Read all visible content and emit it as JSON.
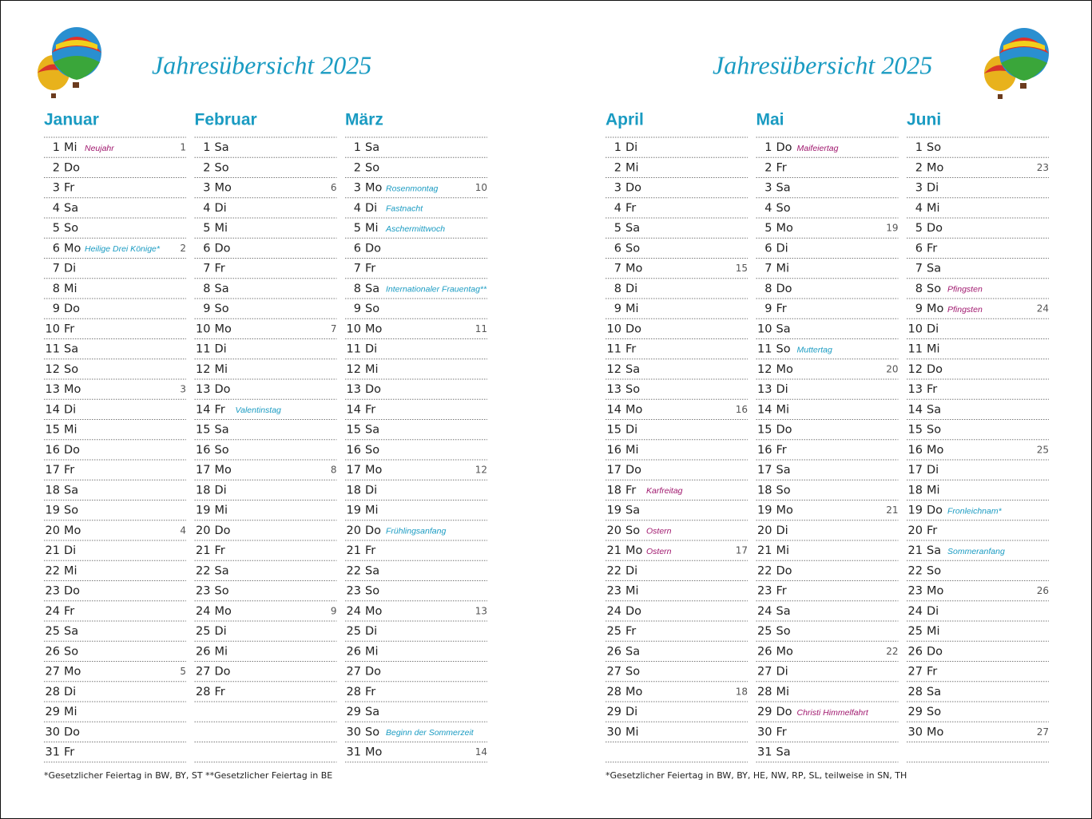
{
  "pages": [
    {
      "title": "Jahresübersicht 2025",
      "footnote": "*Gesetzlicher Feiertag in BW, BY, ST   **Gesetzlicher Feiertag in BE",
      "months": [
        {
          "name": "Januar",
          "days": [
            {
              "day": 1,
              "wd": "Mi",
              "color": "#a0186e",
              "note": "Neujahr",
              "note_color": "#a0186e",
              "week": 1
            },
            {
              "day": 2,
              "wd": "Do"
            },
            {
              "day": 3,
              "wd": "Fr"
            },
            {
              "day": 4,
              "wd": "Sa"
            },
            {
              "day": 5,
              "wd": "So",
              "color": "#1a9bc2"
            },
            {
              "day": 6,
              "wd": "Mo",
              "note": "Heilige Drei Könige*",
              "note_color": "#1a9bc2",
              "week": 2
            },
            {
              "day": 7,
              "wd": "Di"
            },
            {
              "day": 8,
              "wd": "Mi"
            },
            {
              "day": 9,
              "wd": "Do"
            },
            {
              "day": 10,
              "wd": "Fr"
            },
            {
              "day": 11,
              "wd": "Sa"
            },
            {
              "day": 12,
              "wd": "So",
              "color": "#1a9bc2"
            },
            {
              "day": 13,
              "wd": "Mo",
              "week": 3
            },
            {
              "day": 14,
              "wd": "Di"
            },
            {
              "day": 15,
              "wd": "Mi"
            },
            {
              "day": 16,
              "wd": "Do"
            },
            {
              "day": 17,
              "wd": "Fr"
            },
            {
              "day": 18,
              "wd": "Sa"
            },
            {
              "day": 19,
              "wd": "So",
              "color": "#1a9bc2"
            },
            {
              "day": 20,
              "wd": "Mo",
              "week": 4
            },
            {
              "day": 21,
              "wd": "Di"
            },
            {
              "day": 22,
              "wd": "Mi"
            },
            {
              "day": 23,
              "wd": "Do"
            },
            {
              "day": 24,
              "wd": "Fr"
            },
            {
              "day": 25,
              "wd": "Sa"
            },
            {
              "day": 26,
              "wd": "So",
              "color": "#1a9bc2"
            },
            {
              "day": 27,
              "wd": "Mo",
              "week": 5
            },
            {
              "day": 28,
              "wd": "Di"
            },
            {
              "day": 29,
              "wd": "Mi"
            },
            {
              "day": 30,
              "wd": "Do"
            },
            {
              "day": 31,
              "wd": "Fr"
            }
          ]
        },
        {
          "name": "Februar",
          "days": [
            {
              "day": 1,
              "wd": "Sa"
            },
            {
              "day": 2,
              "wd": "So",
              "color": "#1a9bc2"
            },
            {
              "day": 3,
              "wd": "Mo",
              "week": 6
            },
            {
              "day": 4,
              "wd": "Di"
            },
            {
              "day": 5,
              "wd": "Mi"
            },
            {
              "day": 6,
              "wd": "Do"
            },
            {
              "day": 7,
              "wd": "Fr"
            },
            {
              "day": 8,
              "wd": "Sa"
            },
            {
              "day": 9,
              "wd": "So",
              "color": "#1a9bc2"
            },
            {
              "day": 10,
              "wd": "Mo",
              "week": 7
            },
            {
              "day": 11,
              "wd": "Di"
            },
            {
              "day": 12,
              "wd": "Mi"
            },
            {
              "day": 13,
              "wd": "Do"
            },
            {
              "day": 14,
              "wd": "Fr",
              "note": "Valentinstag",
              "note_color": "#1a9bc2"
            },
            {
              "day": 15,
              "wd": "Sa"
            },
            {
              "day": 16,
              "wd": "So",
              "color": "#1a9bc2"
            },
            {
              "day": 17,
              "wd": "Mo",
              "week": 8
            },
            {
              "day": 18,
              "wd": "Di"
            },
            {
              "day": 19,
              "wd": "Mi"
            },
            {
              "day": 20,
              "wd": "Do"
            },
            {
              "day": 21,
              "wd": "Fr"
            },
            {
              "day": 22,
              "wd": "Sa"
            },
            {
              "day": 23,
              "wd": "So",
              "color": "#1a9bc2"
            },
            {
              "day": 24,
              "wd": "Mo",
              "week": 9
            },
            {
              "day": 25,
              "wd": "Di"
            },
            {
              "day": 26,
              "wd": "Mi"
            },
            {
              "day": 27,
              "wd": "Do"
            },
            {
              "day": 28,
              "wd": "Fr"
            }
          ]
        },
        {
          "name": "März",
          "days": [
            {
              "day": 1,
              "wd": "Sa"
            },
            {
              "day": 2,
              "wd": "So",
              "color": "#1a9bc2"
            },
            {
              "day": 3,
              "wd": "Mo",
              "note": "Rosenmontag",
              "note_color": "#1a9bc2",
              "week": 10
            },
            {
              "day": 4,
              "wd": "Di",
              "note": "Fastnacht",
              "note_color": "#1a9bc2"
            },
            {
              "day": 5,
              "wd": "Mi",
              "note": "Aschermittwoch",
              "note_color": "#1a9bc2"
            },
            {
              "day": 6,
              "wd": "Do"
            },
            {
              "day": 7,
              "wd": "Fr"
            },
            {
              "day": 8,
              "wd": "Sa",
              "note": "Internationaler Frauentag**",
              "note_color": "#1a9bc2"
            },
            {
              "day": 9,
              "wd": "So",
              "color": "#1a9bc2"
            },
            {
              "day": 10,
              "wd": "Mo",
              "week": 11
            },
            {
              "day": 11,
              "wd": "Di"
            },
            {
              "day": 12,
              "wd": "Mi"
            },
            {
              "day": 13,
              "wd": "Do"
            },
            {
              "day": 14,
              "wd": "Fr"
            },
            {
              "day": 15,
              "wd": "Sa"
            },
            {
              "day": 16,
              "wd": "So",
              "color": "#1a9bc2"
            },
            {
              "day": 17,
              "wd": "Mo",
              "week": 12
            },
            {
              "day": 18,
              "wd": "Di"
            },
            {
              "day": 19,
              "wd": "Mi"
            },
            {
              "day": 20,
              "wd": "Do",
              "note": "Frühlingsanfang",
              "note_color": "#1a9bc2"
            },
            {
              "day": 21,
              "wd": "Fr"
            },
            {
              "day": 22,
              "wd": "Sa"
            },
            {
              "day": 23,
              "wd": "So",
              "color": "#1a9bc2"
            },
            {
              "day": 24,
              "wd": "Mo",
              "week": 13
            },
            {
              "day": 25,
              "wd": "Di"
            },
            {
              "day": 26,
              "wd": "Mi"
            },
            {
              "day": 27,
              "wd": "Do"
            },
            {
              "day": 28,
              "wd": "Fr"
            },
            {
              "day": 29,
              "wd": "Sa"
            },
            {
              "day": 30,
              "wd": "So",
              "color": "#1a9bc2",
              "note": "Beginn der Sommerzeit",
              "note_color": "#1a9bc2"
            },
            {
              "day": 31,
              "wd": "Mo",
              "week": 14
            }
          ]
        }
      ]
    },
    {
      "title": "Jahresübersicht 2025",
      "footnote": "*Gesetzlicher Feiertag in BW, BY, HE, NW, RP, SL, teilweise in SN, TH",
      "months": [
        {
          "name": "April",
          "days": [
            {
              "day": 1,
              "wd": "Di"
            },
            {
              "day": 2,
              "wd": "Mi"
            },
            {
              "day": 3,
              "wd": "Do"
            },
            {
              "day": 4,
              "wd": "Fr"
            },
            {
              "day": 5,
              "wd": "Sa"
            },
            {
              "day": 6,
              "wd": "So",
              "color": "#1a9bc2"
            },
            {
              "day": 7,
              "wd": "Mo",
              "week": 15
            },
            {
              "day": 8,
              "wd": "Di"
            },
            {
              "day": 9,
              "wd": "Mi"
            },
            {
              "day": 10,
              "wd": "Do"
            },
            {
              "day": 11,
              "wd": "Fr"
            },
            {
              "day": 12,
              "wd": "Sa"
            },
            {
              "day": 13,
              "wd": "So",
              "color": "#1a9bc2"
            },
            {
              "day": 14,
              "wd": "Mo",
              "week": 16
            },
            {
              "day": 15,
              "wd": "Di"
            },
            {
              "day": 16,
              "wd": "Mi"
            },
            {
              "day": 17,
              "wd": "Do"
            },
            {
              "day": 18,
              "wd": "Fr",
              "color": "#a0186e",
              "note": "Karfreitag",
              "note_color": "#a0186e"
            },
            {
              "day": 19,
              "wd": "Sa"
            },
            {
              "day": 20,
              "wd": "So",
              "color": "#a0186e",
              "note": "Ostern",
              "note_color": "#a0186e"
            },
            {
              "day": 21,
              "wd": "Mo",
              "color": "#a0186e",
              "note": "Ostern",
              "note_color": "#a0186e",
              "week": 17
            },
            {
              "day": 22,
              "wd": "Di"
            },
            {
              "day": 23,
              "wd": "Mi"
            },
            {
              "day": 24,
              "wd": "Do"
            },
            {
              "day": 25,
              "wd": "Fr"
            },
            {
              "day": 26,
              "wd": "Sa"
            },
            {
              "day": 27,
              "wd": "So",
              "color": "#1a9bc2"
            },
            {
              "day": 28,
              "wd": "Mo",
              "week": 18
            },
            {
              "day": 29,
              "wd": "Di"
            },
            {
              "day": 30,
              "wd": "Mi"
            }
          ]
        },
        {
          "name": "Mai",
          "days": [
            {
              "day": 1,
              "wd": "Do",
              "color": "#a0186e",
              "note": "Maifeiertag",
              "note_color": "#a0186e"
            },
            {
              "day": 2,
              "wd": "Fr"
            },
            {
              "day": 3,
              "wd": "Sa"
            },
            {
              "day": 4,
              "wd": "So",
              "color": "#1a9bc2"
            },
            {
              "day": 5,
              "wd": "Mo",
              "week": 19
            },
            {
              "day": 6,
              "wd": "Di"
            },
            {
              "day": 7,
              "wd": "Mi"
            },
            {
              "day": 8,
              "wd": "Do"
            },
            {
              "day": 9,
              "wd": "Fr"
            },
            {
              "day": 10,
              "wd": "Sa"
            },
            {
              "day": 11,
              "wd": "So",
              "color": "#1a9bc2",
              "note": "Muttertag",
              "note_color": "#1a9bc2"
            },
            {
              "day": 12,
              "wd": "Mo",
              "week": 20
            },
            {
              "day": 13,
              "wd": "Di"
            },
            {
              "day": 14,
              "wd": "Mi"
            },
            {
              "day": 15,
              "wd": "Do"
            },
            {
              "day": 16,
              "wd": "Fr"
            },
            {
              "day": 17,
              "wd": "Sa"
            },
            {
              "day": 18,
              "wd": "So",
              "color": "#1a9bc2"
            },
            {
              "day": 19,
              "wd": "Mo",
              "week": 21
            },
            {
              "day": 20,
              "wd": "Di"
            },
            {
              "day": 21,
              "wd": "Mi"
            },
            {
              "day": 22,
              "wd": "Do"
            },
            {
              "day": 23,
              "wd": "Fr"
            },
            {
              "day": 24,
              "wd": "Sa"
            },
            {
              "day": 25,
              "wd": "So",
              "color": "#1a9bc2"
            },
            {
              "day": 26,
              "wd": "Mo",
              "week": 22
            },
            {
              "day": 27,
              "wd": "Di"
            },
            {
              "day": 28,
              "wd": "Mi"
            },
            {
              "day": 29,
              "wd": "Do",
              "color": "#a0186e",
              "note": "Christi Himmelfahrt",
              "note_color": "#a0186e"
            },
            {
              "day": 30,
              "wd": "Fr"
            },
            {
              "day": 31,
              "wd": "Sa"
            }
          ]
        },
        {
          "name": "Juni",
          "days": [
            {
              "day": 1,
              "wd": "So",
              "color": "#1a9bc2"
            },
            {
              "day": 2,
              "wd": "Mo",
              "week": 23
            },
            {
              "day": 3,
              "wd": "Di"
            },
            {
              "day": 4,
              "wd": "Mi"
            },
            {
              "day": 5,
              "wd": "Do"
            },
            {
              "day": 6,
              "wd": "Fr"
            },
            {
              "day": 7,
              "wd": "Sa"
            },
            {
              "day": 8,
              "wd": "So",
              "color": "#a0186e",
              "note": "Pfingsten",
              "note_color": "#a0186e"
            },
            {
              "day": 9,
              "wd": "Mo",
              "color": "#a0186e",
              "note": "Pfingsten",
              "note_color": "#a0186e",
              "week": 24
            },
            {
              "day": 10,
              "wd": "Di"
            },
            {
              "day": 11,
              "wd": "Mi"
            },
            {
              "day": 12,
              "wd": "Do"
            },
            {
              "day": 13,
              "wd": "Fr"
            },
            {
              "day": 14,
              "wd": "Sa"
            },
            {
              "day": 15,
              "wd": "So",
              "color": "#1a9bc2"
            },
            {
              "day": 16,
              "wd": "Mo",
              "week": 25
            },
            {
              "day": 17,
              "wd": "Di"
            },
            {
              "day": 18,
              "wd": "Mi"
            },
            {
              "day": 19,
              "wd": "Do",
              "note": "Fronleichnam*",
              "note_color": "#1a9bc2"
            },
            {
              "day": 20,
              "wd": "Fr"
            },
            {
              "day": 21,
              "wd": "Sa",
              "note": "Sommeranfang",
              "note_color": "#1a9bc2"
            },
            {
              "day": 22,
              "wd": "So",
              "color": "#1a9bc2"
            },
            {
              "day": 23,
              "wd": "Mo",
              "week": 26
            },
            {
              "day": 24,
              "wd": "Di"
            },
            {
              "day": 25,
              "wd": "Mi"
            },
            {
              "day": 26,
              "wd": "Do"
            },
            {
              "day": 27,
              "wd": "Fr"
            },
            {
              "day": 28,
              "wd": "Sa"
            },
            {
              "day": 29,
              "wd": "So",
              "color": "#1a9bc2"
            },
            {
              "day": 30,
              "wd": "Mo",
              "week": 27
            }
          ]
        }
      ]
    }
  ]
}
